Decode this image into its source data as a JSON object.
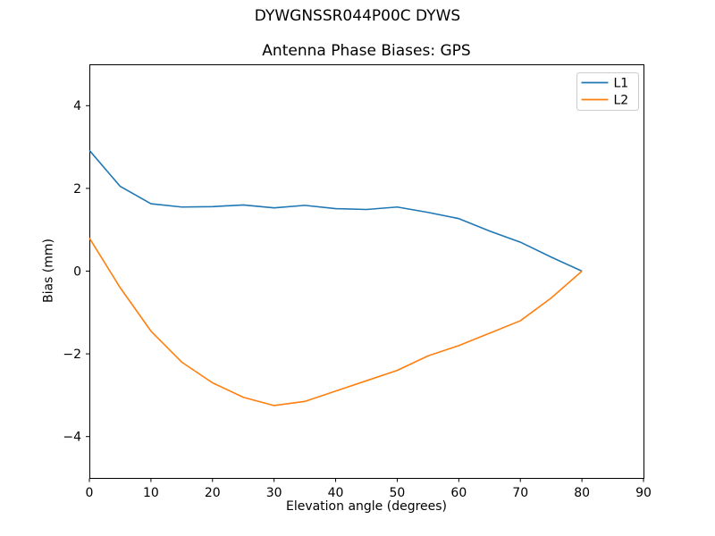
{
  "figure": {
    "suptitle": "DYWGNSSR044P00C DYWS",
    "background_color": "#ffffff",
    "text_color": "#000000"
  },
  "chart_data": {
    "type": "line",
    "title": "Antenna Phase Biases: GPS",
    "xlabel": "Elevation angle (degrees)",
    "ylabel": "Bias (mm)",
    "xlim": [
      0,
      90
    ],
    "ylim": [
      -5,
      5
    ],
    "xticks": [
      0,
      10,
      20,
      30,
      40,
      50,
      60,
      70,
      80,
      90
    ],
    "yticks": [
      -4,
      -2,
      0,
      2,
      4
    ],
    "grid": false,
    "legend_position": "upper right",
    "x": [
      0,
      5,
      10,
      15,
      20,
      25,
      30,
      35,
      40,
      45,
      50,
      55,
      60,
      65,
      70,
      75,
      80
    ],
    "series": [
      {
        "name": "L1",
        "color": "#1f77b4",
        "values": [
          2.92,
          2.05,
          1.63,
          1.55,
          1.56,
          1.6,
          1.53,
          1.59,
          1.51,
          1.49,
          1.55,
          1.42,
          1.27,
          0.97,
          0.7,
          0.34,
          0.0
        ]
      },
      {
        "name": "L2",
        "color": "#ff7f0e",
        "values": [
          0.8,
          -0.4,
          -1.45,
          -2.2,
          -2.7,
          -3.05,
          -3.25,
          -3.15,
          -2.9,
          -2.65,
          -2.4,
          -2.05,
          -1.8,
          -1.5,
          -1.2,
          -0.65,
          0.0
        ]
      }
    ],
    "axis_color": "#000000",
    "legend_border_color": "#cccccc"
  }
}
